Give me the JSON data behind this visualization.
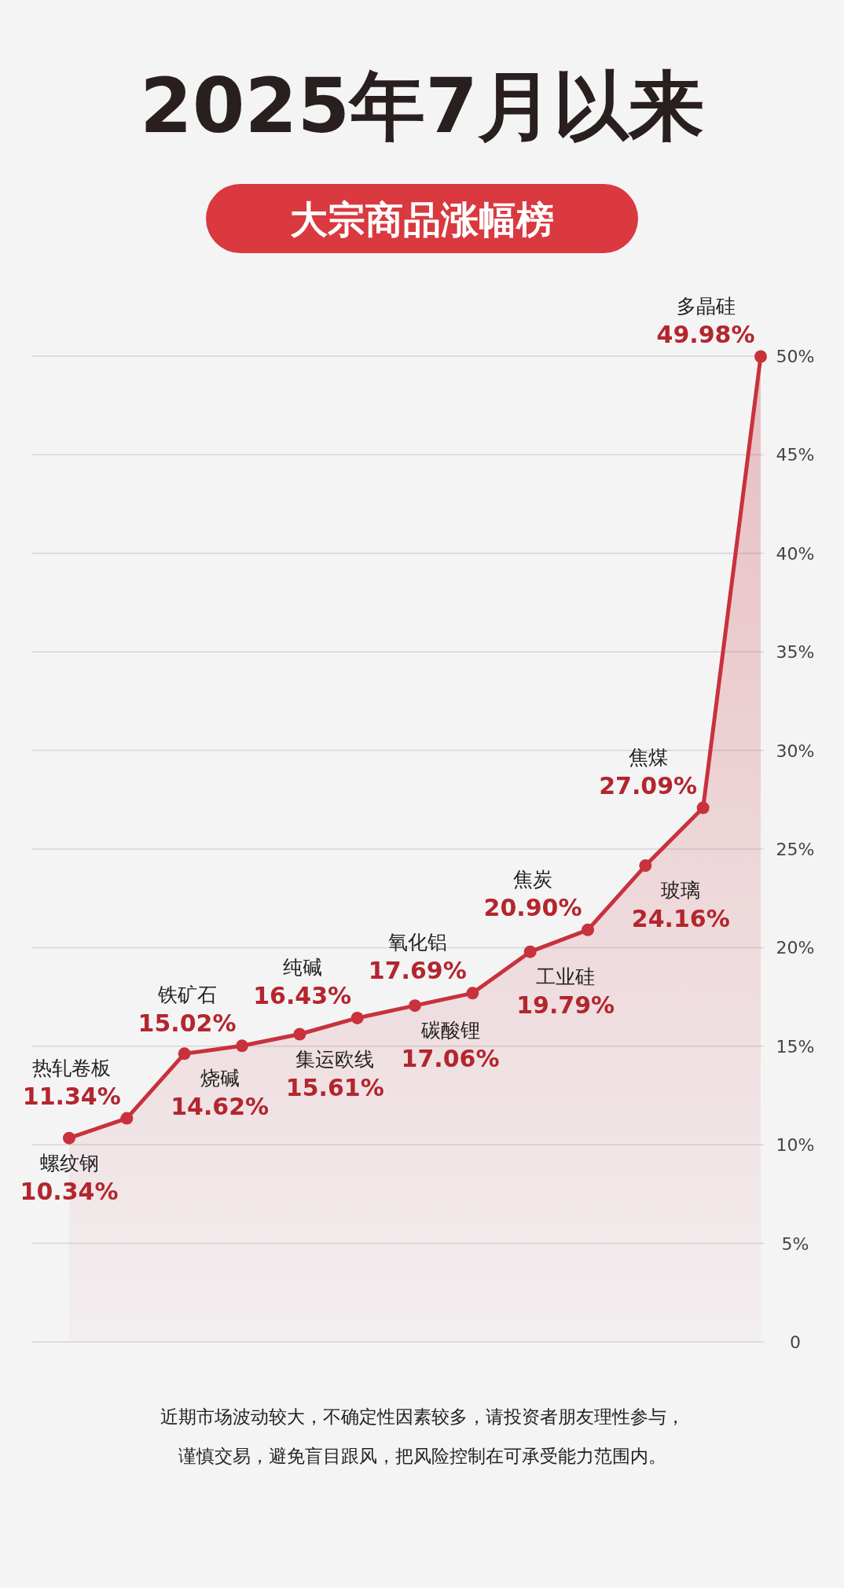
{
  "chart_data": {
    "type": "area",
    "title": "2025年7月以来",
    "subtitle": "大宗商品涨幅榜",
    "categories": [
      null,
      null,
      null,
      null,
      null,
      null,
      null,
      null,
      null,
      null,
      null,
      null,
      null
    ],
    "values": [
      10.34,
      11.34,
      14.62,
      15.02,
      15.61,
      16.43,
      17.06,
      17.69,
      19.79,
      20.9,
      24.16,
      27.09,
      49.98
    ],
    "value_labels": [
      "10.34%",
      "11.34%",
      "14.62%",
      "15.02%",
      "15.61%",
      "16.43%",
      "17.06%",
      "17.69%",
      "19.79%",
      "20.90%",
      "24.16%",
      "27.09%",
      "49.98%"
    ],
    "color": "#c8323c",
    "marker": "circle",
    "grid": "y",
    "ylim": [
      0,
      50
    ],
    "yticks": [
      0,
      {
        "value": 5,
        "label": "5%"
      },
      {
        "value": 10,
        "label": "10%"
      },
      {
        "value": 15,
        "label": "15%"
      },
      {
        "value": 20,
        "label": "20%"
      },
      {
        "value": 25,
        "label": "25%"
      },
      {
        "value": 30,
        "label": "30%"
      },
      {
        "value": 35,
        "label": "35%"
      },
      {
        "value": 40,
        "label": "40%"
      },
      {
        "value": 45,
        "label": "45%"
      },
      {
        "value": 50,
        "label": "50%"
      }
    ],
    "annotations": [
      "螺纹钢",
      "热轧卷板",
      "烧碱",
      "铁矿石",
      "集运欧线",
      "纯碱",
      "碳酸锂",
      "氧化铝",
      "工业硅",
      "焦炭",
      "玻璃",
      "焦煤",
      "多晶硅",
      "近期市场波动较大，不确定性因素较多，请投资者朋友理性参与，",
      "谨慎交易，避免盲目跟风，把风险控制在可承受能力范围内。"
    ]
  }
}
